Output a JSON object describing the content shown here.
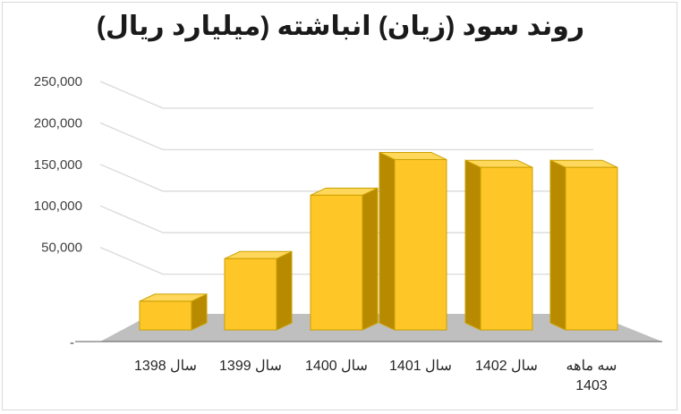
{
  "chart_data": {
    "type": "bar",
    "title": "روند سود (زیان) انباشته (میلیارد ریال)",
    "categories": [
      "سال 1398",
      "سال 1399",
      "سال 1400",
      "سال 1401",
      "سال 1402",
      "سه ماهه 1403"
    ],
    "category_lines": [
      [
        "سال 1398"
      ],
      [
        "سال 1399"
      ],
      [
        "سال 1400"
      ],
      [
        "سال 1401"
      ],
      [
        "سال 1402"
      ],
      [
        "سه ماهه",
        "1403"
      ]
    ],
    "values": [
      33000,
      82000,
      155000,
      196000,
      187000,
      187000
    ],
    "ylim": [
      0,
      250000
    ],
    "yticks": [
      0,
      50000,
      100000,
      150000,
      200000,
      250000
    ],
    "ytick_labels": [
      "-",
      "50,000",
      "100,000",
      "150,000",
      "200,000",
      "250,000"
    ],
    "xlabel": "",
    "ylabel": "",
    "grid": true,
    "legend": "none",
    "colors": {
      "bar_front": "#ffc628",
      "bar_side": "#b88a00",
      "bar_top": "#ffd75a",
      "bar_edge": "#caa000",
      "floor": "#bfbfbf",
      "grid": "#d9d9d9"
    }
  }
}
